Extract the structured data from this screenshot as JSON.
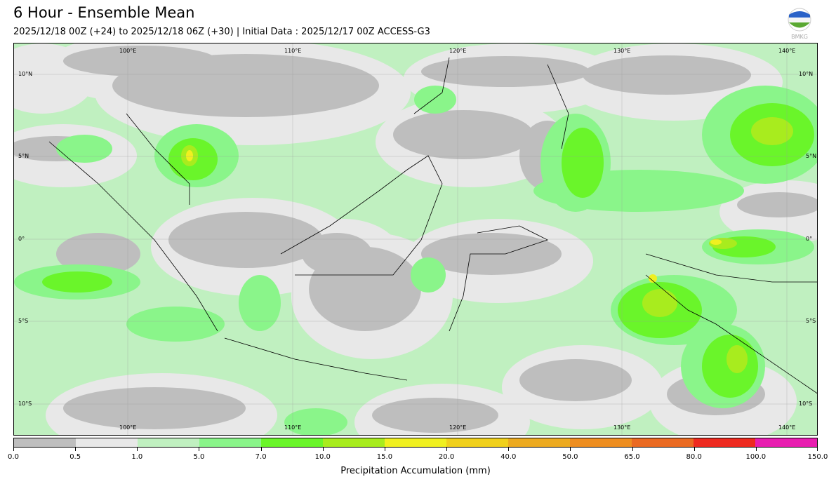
{
  "header": {
    "title": "6 Hour - Ensemble Mean",
    "subtitle": "2025/12/18 00Z (+24) to 2025/12/18 06Z (+30) | Initial Data : 2025/12/17 00Z ACCESS-G3",
    "logo_text": "BMKG"
  },
  "map": {
    "lon_labels": [
      "100°E",
      "110°E",
      "120°E",
      "130°E",
      "140°E"
    ],
    "lat_labels": [
      "10°N",
      "5°N",
      "0°",
      "5°S",
      "10°S"
    ]
  },
  "colorbar": {
    "label": "Precipitation Accumulation (mm)",
    "ticks": [
      "0.0",
      "0.5",
      "1.0",
      "5.0",
      "7.0",
      "10.0",
      "15.0",
      "20.0",
      "40.0",
      "50.0",
      "65.0",
      "80.0",
      "100.0",
      "150.0"
    ],
    "colors": [
      "#bebebe",
      "#e8e8e8",
      "#c0f0c0",
      "#8af58a",
      "#6af52a",
      "#a8ec1e",
      "#f0f020",
      "#f0d01c",
      "#ecaa20",
      "#ee8e20",
      "#ea6a22",
      "#ee2a20",
      "#e81eb0"
    ]
  }
}
